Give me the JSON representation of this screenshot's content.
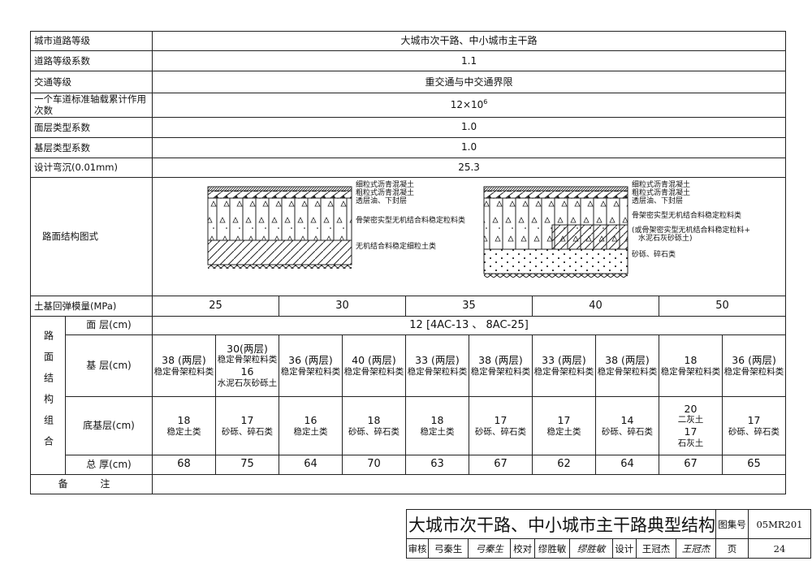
{
  "params": [
    {
      "label": "城市道路等级",
      "value": "大城市次干路、中小城市主干路"
    },
    {
      "label": "道路等级系数",
      "value": "1.1"
    },
    {
      "label": "交通等级",
      "value": "重交通与中交通界限"
    },
    {
      "label": "一个车道标准轴载累计作用次数",
      "value": "12×10",
      "sup": "6"
    },
    {
      "label": "面层类型系数",
      "value": "1.0"
    },
    {
      "label": "基层类型系数",
      "value": "1.0"
    },
    {
      "label": "设计弯沉(0.01mm)",
      "value": "25.3"
    }
  ],
  "diagram": {
    "label": "路面结构图式",
    "left": [
      "细粒式沥青混凝土",
      "粗粒式沥青混凝土",
      "透层油、下封层",
      "骨架密实型无机结合料稳定粒料类",
      "无机结合料稳定细粒土类"
    ],
    "right": [
      "细粒式沥青混凝土",
      "粗粒式沥青混凝土",
      "透层油、下封层",
      "骨架密实型无机结合料稳定粒料类",
      "(或骨架密实型无机结合料稳定粒料+",
      "水泥石灰砂砾土)",
      "砂砾、碎石类"
    ]
  },
  "subgrade": {
    "label": "土基回弹模量(MPa)",
    "values": [
      "25",
      "30",
      "35",
      "40",
      "50"
    ]
  },
  "combo": {
    "group_label": "路面结构组合",
    "surface": {
      "label": "面 层(cm)",
      "value": "12 [4AC-13 、 8AC-25]"
    },
    "base": {
      "label": "基 层(cm)",
      "cells": [
        [
          "38 (两层)",
          "稳定骨架粒料类"
        ],
        [
          "30(两层)",
          "稳定骨架粒料类",
          "16",
          "水泥石灰砂砾土"
        ],
        [
          "36 (两层)",
          "稳定骨架粒料类"
        ],
        [
          "40 (两层)",
          "稳定骨架粒料类"
        ],
        [
          "33 (两层)",
          "稳定骨架粒料类"
        ],
        [
          "38 (两层)",
          "稳定骨架粒料类"
        ],
        [
          "33 (两层)",
          "稳定骨架粒料类"
        ],
        [
          "38 (两层)",
          "稳定骨架粒料类"
        ],
        [
          "18",
          "稳定骨架粒料类"
        ],
        [
          "36 (两层)",
          "稳定骨架粒料类"
        ]
      ]
    },
    "subbase": {
      "label": "底基层(cm)",
      "cells": [
        [
          "18",
          "稳定土类"
        ],
        [
          "17",
          "砂砾、碎石类"
        ],
        [
          "16",
          "稳定土类"
        ],
        [
          "18",
          "砂砾、碎石类"
        ],
        [
          "18",
          "稳定土类"
        ],
        [
          "17",
          "砂砾、碎石类"
        ],
        [
          "17",
          "稳定土类"
        ],
        [
          "14",
          "砂砾、碎石类"
        ],
        [
          "20",
          "二灰土",
          "17",
          "石灰土"
        ],
        [
          "17",
          "砂砾、碎石类"
        ]
      ]
    },
    "total": {
      "label": "总 厚(cm)",
      "values": [
        "68",
        "75",
        "64",
        "70",
        "63",
        "67",
        "62",
        "64",
        "67",
        "65"
      ]
    }
  },
  "remarks": {
    "label": "备 注",
    "value": ""
  },
  "title_block": {
    "title": "大城市次干路、中小城市主干路典型结构",
    "atlas_label": "图集号",
    "atlas_no": "05MR201",
    "review_label": "审核",
    "reviewer": "弓秦生",
    "reviewer_sig": "弓秦生",
    "check_label": "校对",
    "checker": "缪胜敏",
    "checker_sig": "缪胜敏",
    "design_label": "设计",
    "designer": "王冠杰",
    "designer_sig": "王冠杰",
    "page_label": "页",
    "page_no": "24"
  }
}
